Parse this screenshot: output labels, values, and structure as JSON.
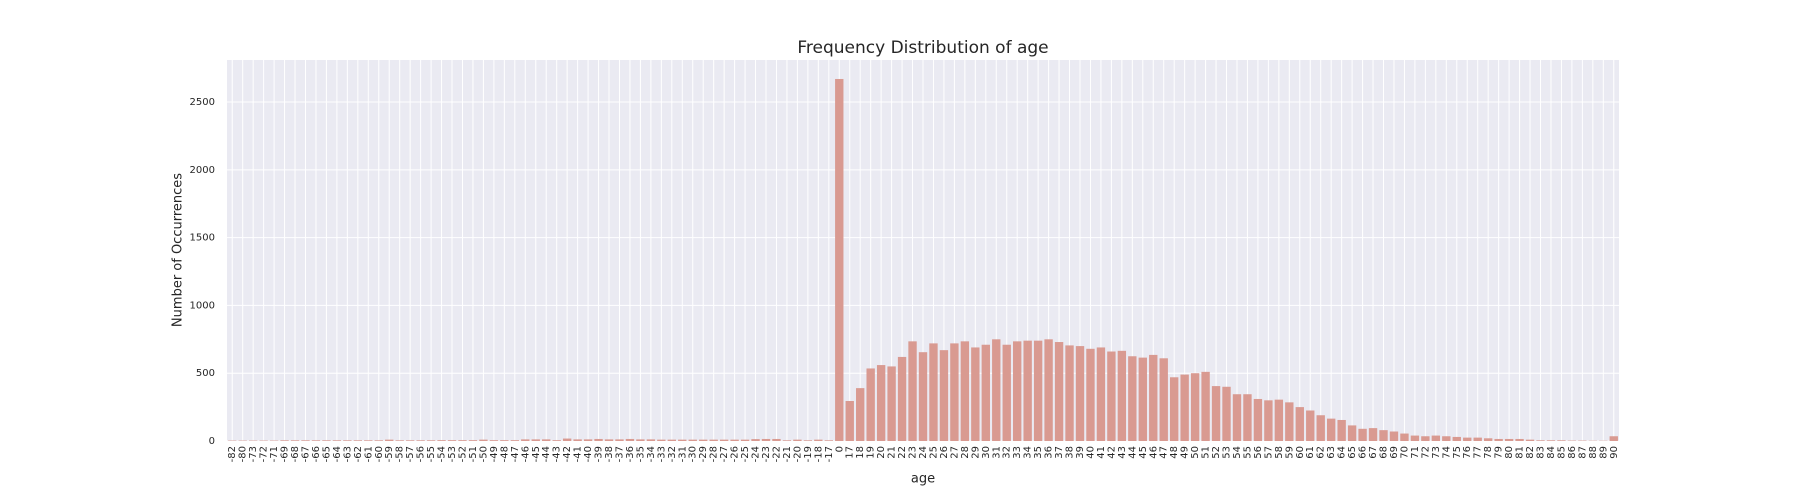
{
  "chart_data": {
    "type": "bar",
    "title": "Frequency Distribution of age",
    "xlabel": "age",
    "ylabel": "Number of Occurrences",
    "categories": [
      "-82",
      "-80",
      "-73",
      "-72",
      "-71",
      "-69",
      "-68",
      "-67",
      "-66",
      "-65",
      "-64",
      "-63",
      "-62",
      "-61",
      "-60",
      "-59",
      "-58",
      "-57",
      "-56",
      "-55",
      "-54",
      "-53",
      "-52",
      "-51",
      "-50",
      "-49",
      "-48",
      "-47",
      "-46",
      "-45",
      "-44",
      "-43",
      "-42",
      "-41",
      "-40",
      "-39",
      "-38",
      "-37",
      "-36",
      "-35",
      "-34",
      "-33",
      "-32",
      "-31",
      "-30",
      "-29",
      "-28",
      "-27",
      "-26",
      "-25",
      "-24",
      "-23",
      "-22",
      "-21",
      "-20",
      "-19",
      "-18",
      "-17",
      "0",
      "17",
      "18",
      "19",
      "20",
      "21",
      "22",
      "23",
      "24",
      "25",
      "26",
      "27",
      "28",
      "29",
      "30",
      "31",
      "32",
      "33",
      "34",
      "35",
      "36",
      "37",
      "38",
      "39",
      "40",
      "41",
      "42",
      "43",
      "44",
      "45",
      "46",
      "47",
      "48",
      "49",
      "50",
      "51",
      "52",
      "53",
      "54",
      "55",
      "56",
      "57",
      "58",
      "59",
      "60",
      "61",
      "62",
      "63",
      "64",
      "65",
      "66",
      "67",
      "68",
      "69",
      "70",
      "71",
      "72",
      "73",
      "74",
      "75",
      "76",
      "77",
      "78",
      "79",
      "80",
      "81",
      "82",
      "83",
      "84",
      "85",
      "86",
      "87",
      "88",
      "89",
      "90"
    ],
    "values": [
      3,
      3,
      3,
      3,
      3,
      5,
      5,
      5,
      5,
      5,
      5,
      5,
      5,
      5,
      5,
      10,
      5,
      5,
      5,
      5,
      6,
      6,
      6,
      6,
      10,
      6,
      6,
      6,
      12,
      12,
      12,
      6,
      18,
      12,
      12,
      15,
      12,
      12,
      15,
      12,
      12,
      10,
      10,
      10,
      10,
      10,
      10,
      10,
      10,
      10,
      14,
      15,
      15,
      5,
      10,
      5,
      10,
      5,
      2670,
      295,
      390,
      535,
      560,
      550,
      620,
      735,
      655,
      720,
      670,
      720,
      735,
      690,
      710,
      750,
      710,
      735,
      740,
      740,
      750,
      730,
      705,
      700,
      680,
      690,
      660,
      665,
      625,
      615,
      635,
      610,
      470,
      490,
      500,
      510,
      405,
      400,
      345,
      345,
      310,
      300,
      305,
      285,
      250,
      225,
      190,
      165,
      155,
      115,
      90,
      95,
      80,
      70,
      55,
      40,
      35,
      40,
      35,
      30,
      25,
      25,
      20,
      15,
      15,
      15,
      10,
      5,
      5,
      5,
      3,
      3,
      2,
      2,
      35
    ],
    "color": "#d99a91",
    "ylim": [
      0,
      2810
    ],
    "yticks": [
      0,
      500,
      1000,
      1500,
      2000,
      2500
    ],
    "grid": true
  }
}
